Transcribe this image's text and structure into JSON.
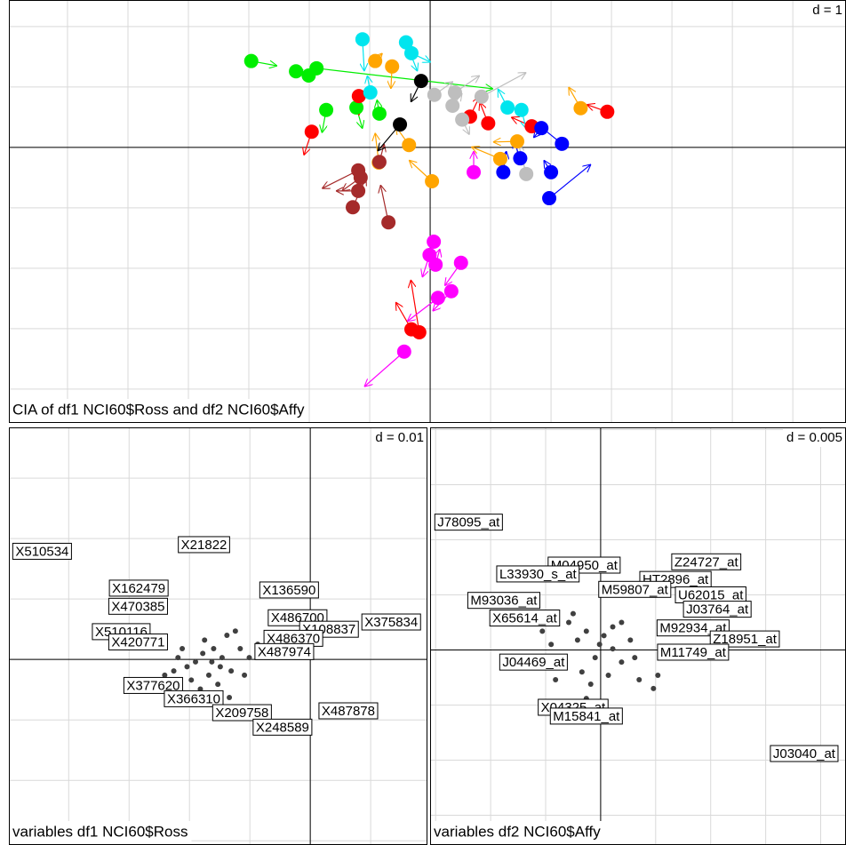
{
  "chart_data": [
    {
      "type": "arrows",
      "title": "CIA of df1 NCI60$Ross and df2 NCI60$Affy",
      "d_label": "d = 1",
      "xlim": [
        -6.97,
        6.88
      ],
      "ylim": [
        -4.56,
        2.44
      ],
      "xticks": [
        -6,
        -5,
        -4,
        -3,
        -2,
        -1,
        0,
        1,
        2,
        3,
        4,
        5,
        6
      ],
      "yticks": [
        -4,
        -3,
        -2,
        -1,
        0,
        1,
        2
      ],
      "grid": true,
      "series": [
        {
          "color": "#00ee00",
          "x": [
            -2.96,
            -2.22,
            -2.01,
            -1.88,
            -1.72,
            -1.22,
            -0.84
          ],
          "y": [
            1.43,
            1.26,
            1.19,
            1.31,
            0.62,
            0.66,
            0.56
          ],
          "x_end": [
            -2.53,
            -2.1,
            -1.9,
            1.04,
            -1.79,
            -1.12,
            -0.88
          ],
          "y_end": [
            1.35,
            1.29,
            1.16,
            0.97,
            0.24,
            0.31,
            0.79
          ]
        },
        {
          "color": "#ff0000",
          "x": [
            -1.96,
            -1.18,
            -0.31,
            -0.18,
            0.96,
            0.66,
            1.68,
            2.93
          ],
          "y": [
            0.26,
            0.85,
            -3.01,
            -3.06,
            0.4,
            0.51,
            0.35,
            0.59
          ],
          "x_end": [
            -2.09,
            -1.18,
            -0.57,
            -0.32,
            0.82,
            0.82,
            1.34,
            2.59
          ],
          "y_end": [
            -0.13,
            0.53,
            -2.56,
            -2.19,
            0.75,
            0.85,
            0.5,
            0.71
          ]
        },
        {
          "color": "#00e5ee",
          "x": [
            -1.12,
            -0.99,
            -0.4,
            -0.31,
            1.28,
            1.51
          ],
          "y": [
            1.79,
            0.91,
            1.74,
            1.56,
            0.66,
            0.62
          ],
          "x_end": [
            -1.09,
            -1.04,
            -0.21,
            0.01,
            1.12,
            1.59
          ],
          "y_end": [
            1.26,
            1.19,
            1.26,
            1.41,
            0.97,
            0.31
          ]
        },
        {
          "color": "#ffa500",
          "x": [
            -0.91,
            -0.63,
            -0.35,
            -0.85,
            0.03,
            1.16,
            1.44,
            2.49
          ],
          "y": [
            1.43,
            1.34,
            0.04,
            -0.25,
            -0.56,
            -0.19,
            0.1,
            0.65
          ],
          "x_end": [
            -0.79,
            -0.65,
            -0.57,
            -0.91,
            -0.35,
            0.68,
            1.04,
            2.29
          ],
          "y_end": [
            1.56,
            0.97,
            0.35,
            0.24,
            -0.21,
            0.01,
            0.09,
            1.0
          ]
        },
        {
          "color": "#bebebe",
          "x": [
            0.07,
            0.41,
            0.37,
            0.85,
            0.53,
            1.59
          ],
          "y": [
            0.87,
            0.91,
            0.69,
            0.84,
            0.46,
            -0.44
          ],
          "x_end": [
            0.38,
            0.82,
            0.53,
            1.59,
            0.65,
            1.46
          ],
          "y_end": [
            1.09,
            1.19,
            0.9,
            1.24,
            0.21,
            0.06
          ]
        },
        {
          "color": "#0000ff",
          "x": [
            2.18,
            1.84,
            1.49,
            1.21,
            2.0,
            1.97
          ],
          "y": [
            0.06,
            0.32,
            -0.18,
            -0.41,
            -0.41,
            -0.84
          ],
          "x_end": [
            1.78,
            1.71,
            1.38,
            1.26,
            1.88,
            2.66
          ],
          "y_end": [
            0.38,
            0.16,
            0.12,
            -0.06,
            -0.21,
            -0.28
          ]
        },
        {
          "color": "#ff00ff",
          "x": [
            0.72,
            0.06,
            -0.01,
            0.09,
            0.51,
            0.35,
            0.13,
            -0.43
          ],
          "y": [
            -0.41,
            -1.56,
            -1.78,
            -1.94,
            -1.91,
            -2.38,
            -2.49,
            -3.38
          ],
          "x_end": [
            0.72,
            -0.06,
            -0.13,
            0.16,
            0.24,
            0.04,
            -0.38,
            -1.09
          ],
          "y_end": [
            -0.06,
            -1.82,
            -2.15,
            -1.68,
            -2.29,
            -2.71,
            -2.88,
            -3.96
          ]
        },
        {
          "color": "#a52a2a",
          "x": [
            -1.19,
            -1.15,
            -1.19,
            -1.28,
            -0.69,
            -0.84
          ],
          "y": [
            -0.38,
            -0.5,
            -0.72,
            -0.99,
            -1.24,
            -0.24
          ],
          "x_end": [
            -1.79,
            -1.46,
            -1.56,
            -1.06,
            -0.82,
            -0.76
          ],
          "y_end": [
            -0.68,
            -0.72,
            -0.72,
            -0.5,
            -0.62,
            0.06
          ]
        },
        {
          "color": "#000000",
          "x": [
            -0.15,
            -0.5
          ],
          "y": [
            1.1,
            0.38
          ],
          "x_end": [
            -0.32,
            -0.87
          ],
          "y_end": [
            0.75,
            -0.06
          ]
        }
      ]
    },
    {
      "type": "labels",
      "title": "variables df1 NCI60$Ross",
      "d_label": "d = 0.01",
      "xlim": [
        -0.0499,
        0.0194
      ],
      "ylim": [
        -0.0307,
        0.0384
      ],
      "xticks": [
        -0.04,
        -0.03,
        -0.02,
        -0.01,
        0,
        0.01
      ],
      "yticks": [
        -0.03,
        -0.02,
        -0.01,
        0,
        0.01,
        0.02,
        0.03
      ],
      "grid": true,
      "points": {
        "color": "#404040",
        "x": [
          -0.0175,
          -0.016,
          -0.019,
          -0.0146,
          -0.0131,
          -0.0168,
          -0.0204,
          -0.0116,
          -0.0219,
          -0.0153,
          -0.0182,
          -0.0138,
          -0.0124,
          -0.0101,
          -0.0087,
          -0.0197,
          -0.0226,
          -0.0163,
          -0.0149,
          -0.0178,
          -0.0109,
          -0.0072,
          -0.0241,
          -0.0134,
          -0.0212
        ],
        "y": [
          0.0032,
          0.0018,
          -0.0004,
          0.0003,
          -0.0019,
          -0.0026,
          -0.0012,
          0.0018,
          0.0003,
          -0.0041,
          -0.0049,
          0.004,
          0.0047,
          0.0003,
          0.0025,
          -0.0034,
          -0.0019,
          -0.0004,
          -0.0012,
          0.001,
          -0.0026,
          0.0032,
          -0.0026,
          -0.0063,
          0.0018
        ]
      },
      "labels": {
        "text": [
          "X510534",
          "X21822",
          "X162479",
          "X470385",
          "X136590",
          "X486700",
          "X375834",
          "X108837",
          "X510116",
          "X420771",
          "X486370",
          "X487974",
          "X377620",
          "X366310",
          "X209758",
          "X487878",
          "X248589"
        ],
        "x": [
          -0.0444,
          -0.0176,
          -0.0284,
          -0.0285,
          -0.0035,
          -0.0021,
          0.0134,
          0.0031,
          -0.0313,
          -0.0285,
          -0.0028,
          -0.0043,
          -0.026,
          -0.0193,
          -0.0113,
          0.0063,
          -0.0046
        ],
        "y": [
          0.0179,
          0.019,
          0.0118,
          0.0088,
          0.0115,
          0.0069,
          0.0062,
          0.005,
          0.0046,
          0.0029,
          0.0035,
          0.0013,
          -0.0043,
          -0.0065,
          -0.0088,
          -0.0085,
          -0.0112
        ]
      }
    },
    {
      "type": "labels",
      "title": "variables df2 NCI60$Affy",
      "d_label": "d = 0.005",
      "xlim": [
        -0.0155,
        0.0223
      ],
      "ylim": [
        -0.0177,
        0.0202
      ],
      "xticks": [
        -0.015,
        -0.01,
        -0.005,
        0,
        0.005,
        0.01,
        0.015,
        0.02
      ],
      "yticks": [
        -0.015,
        -0.01,
        -0.005,
        0,
        0.005,
        0.01,
        0.015,
        0.02
      ],
      "grid": true,
      "points": {
        "color": "#404040",
        "x": [
          -0.0029,
          -0.0013,
          -0.0021,
          0.0003,
          0.0011,
          -0.0005,
          -0.0017,
          0.0019,
          0.0027,
          -0.0045,
          -0.0037,
          -0.0009,
          0.0007,
          0.0035,
          0.0048,
          -0.0025,
          0.0019,
          -0.0053,
          -0.0001,
          0.0011,
          0.0052,
          -0.0013,
          -0.0041,
          0.0031
        ],
        "y": [
          0.0025,
          0.0017,
          0.0009,
          0.0013,
          0.0001,
          -0.0007,
          -0.002,
          -0.0011,
          0.0009,
          0.0005,
          -0.0011,
          -0.0031,
          -0.0023,
          -0.0027,
          -0.0035,
          0.0033,
          0.0025,
          0.0017,
          0.0005,
          0.0021,
          -0.0023,
          -0.0044,
          -0.0027,
          -0.0007
        ]
      },
      "labels": {
        "text": [
          "J78095_at",
          "M04950_at",
          "Z24727_at",
          "L33930_s_at",
          "HT2896_at",
          "M59807_at",
          "M93036_at",
          "U62015_at",
          "X65614_at",
          "J03764_at",
          "M92934_at",
          "Z18951_at",
          "M11749_at",
          "J04469_at",
          "X04325_at",
          "M15841_at",
          "J03040_at"
        ],
        "x": [
          -0.012,
          -0.0015,
          0.0096,
          -0.0057,
          0.0068,
          0.0031,
          -0.0088,
          0.01,
          -0.0069,
          0.0106,
          0.0084,
          0.0131,
          0.0084,
          -0.0061,
          -0.0025,
          -0.0013,
          0.0185
        ],
        "y": [
          0.0116,
          0.0077,
          0.008,
          0.0069,
          0.0064,
          0.0055,
          0.0045,
          0.005,
          0.0029,
          0.0037,
          0.002,
          0.001,
          -0.0002,
          -0.0011,
          -0.0052,
          -0.006,
          -0.0094
        ]
      }
    }
  ]
}
